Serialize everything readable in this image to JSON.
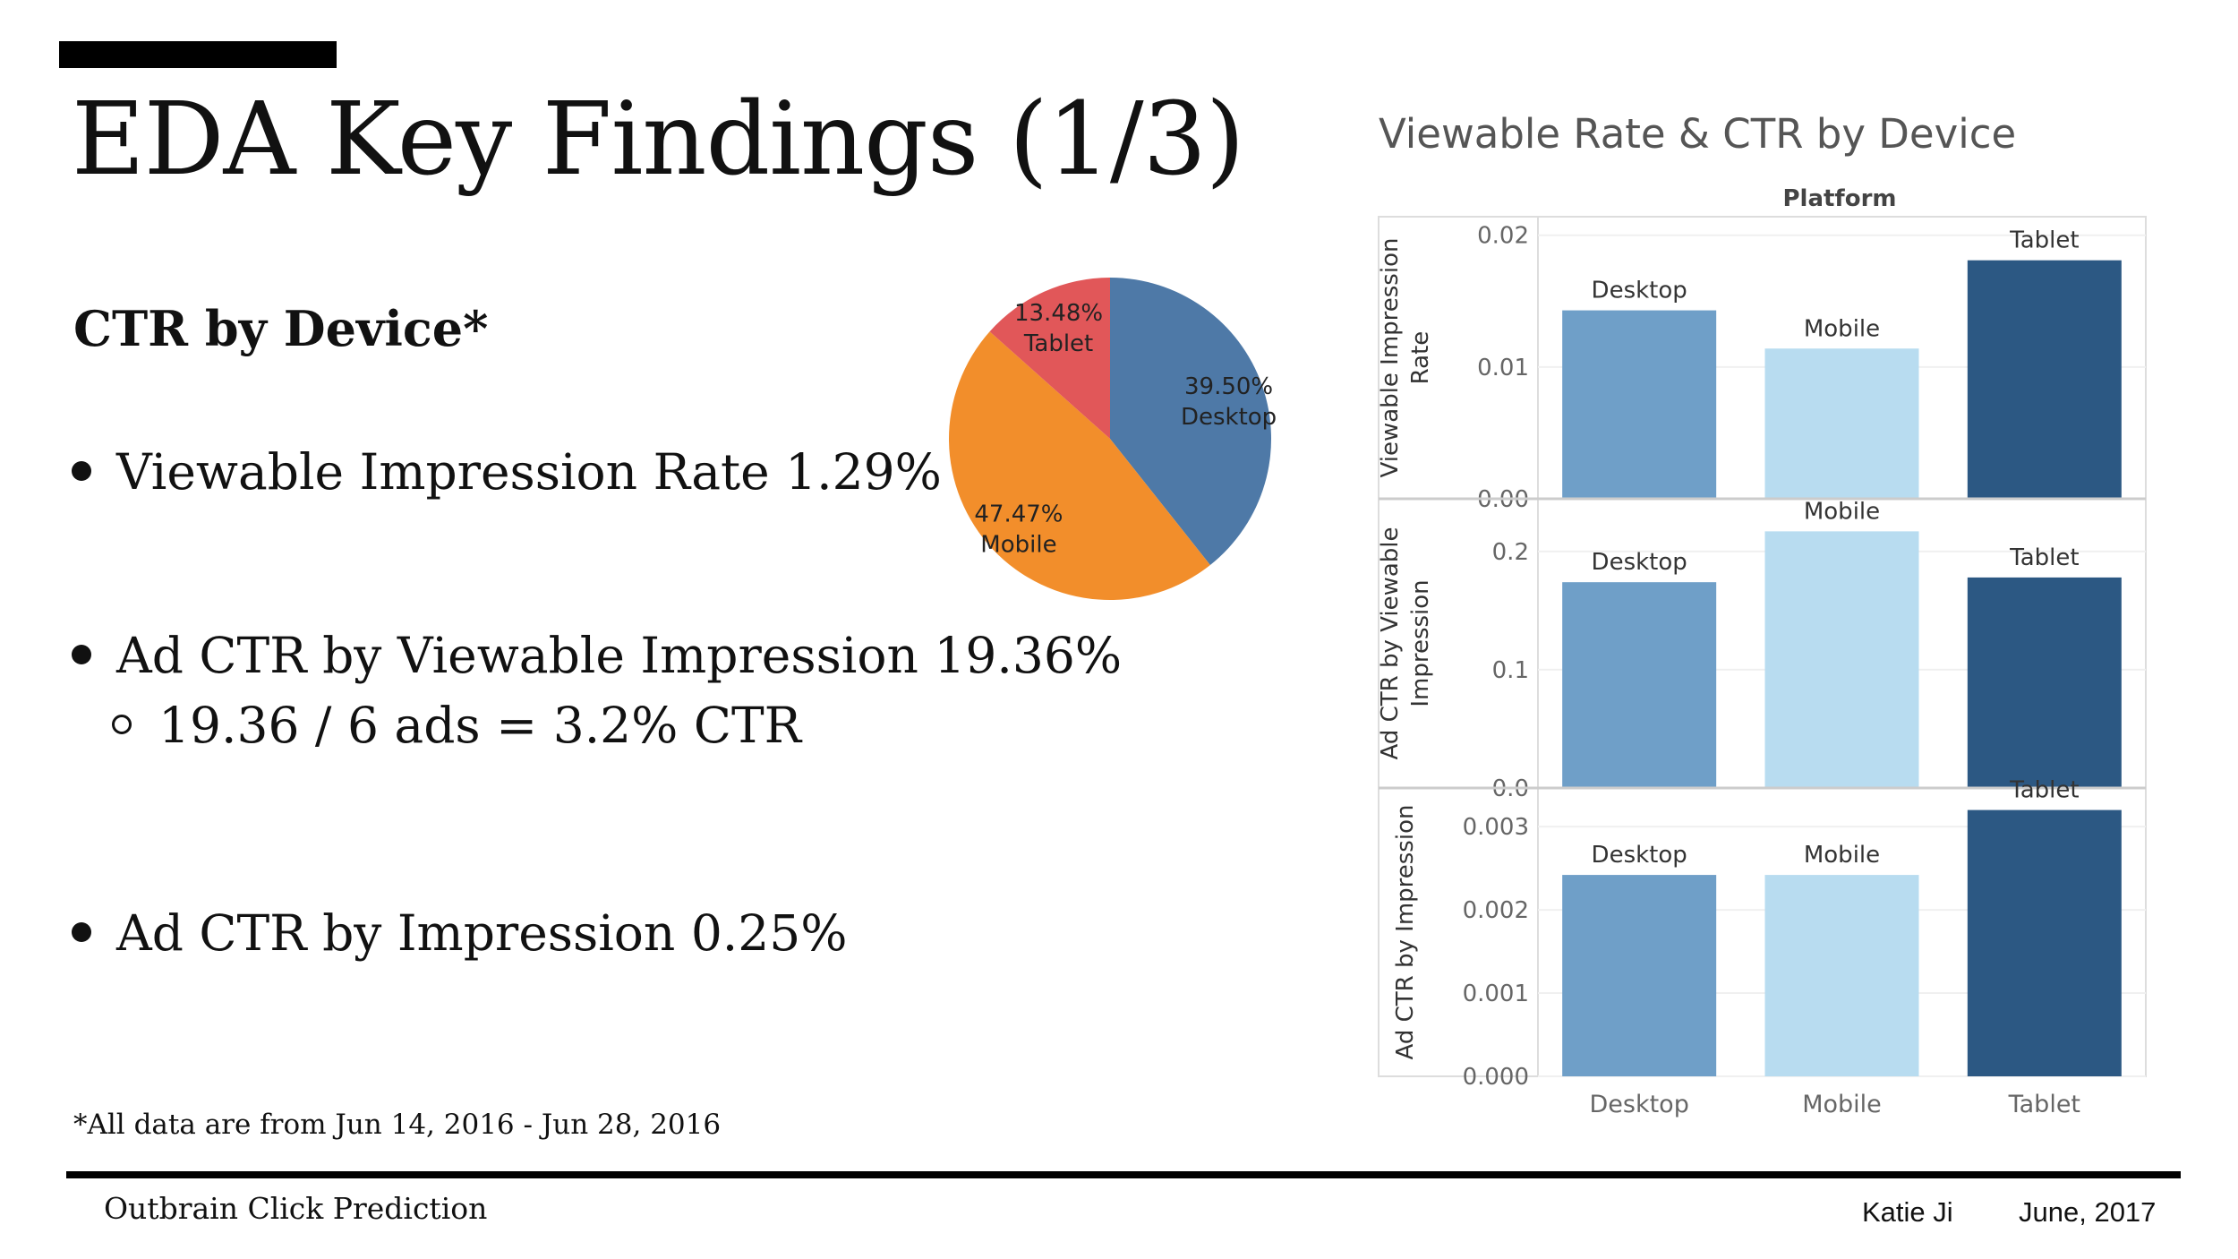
{
  "slide": {
    "title": "EDA Key Findings (1/3)",
    "subheading": "CTR by Device*",
    "bullets": [
      "Viewable Impression Rate 1.29%",
      "Ad CTR by Viewable Impression 19.36%",
      "Ad CTR by Impression 0.25%"
    ],
    "sub_bullet": "19.36 / 6 ads = 3.2% CTR",
    "footnote": "*All data are from Jun 14, 2016 - Jun 28, 2016",
    "footer_left": "Outbrain Click Prediction",
    "author": "Katie Ji",
    "date": "June, 2017"
  },
  "colors": {
    "desktop": "#6f9fc8",
    "mobile": "#b8dcf0",
    "tablet": "#2c5883",
    "pie_desktop": "#4e79a7",
    "pie_mobile": "#f28e2b",
    "pie_tablet": "#e15759"
  },
  "chart_data": [
    {
      "type": "pie",
      "slices": [
        {
          "label": "Desktop",
          "value": 39.5,
          "display": "39.50%"
        },
        {
          "label": "Mobile",
          "value": 47.47,
          "display": "47.47%"
        },
        {
          "label": "Tablet",
          "value": 13.48,
          "display": "13.48%"
        }
      ]
    },
    {
      "type": "bar",
      "title": "Viewable Rate & CTR by Device",
      "column_header": "Platform",
      "categories": [
        "Desktop",
        "Mobile",
        "Tablet"
      ],
      "panels": [
        {
          "ylabel": [
            "Viewable Impression",
            "Rate"
          ],
          "ylim": [
            0,
            0.021
          ],
          "ticks": [
            "0.00",
            "0.01",
            "0.02"
          ],
          "values": [
            0.0143,
            0.0114,
            0.0181
          ]
        },
        {
          "ylabel": [
            "Ad CTR by Viewable",
            "Impression"
          ],
          "ylim": [
            0,
            0.24
          ],
          "ticks": [
            "0.0",
            "0.1",
            "0.2"
          ],
          "values": [
            0.174,
            0.217,
            0.178
          ]
        },
        {
          "ylabel": [
            "Ad CTR by Impression"
          ],
          "ylim": [
            0,
            0.0034
          ],
          "ticks": [
            "0.000",
            "0.001",
            "0.002",
            "0.003"
          ],
          "values": [
            0.00242,
            0.00242,
            0.0032
          ]
        }
      ]
    }
  ]
}
